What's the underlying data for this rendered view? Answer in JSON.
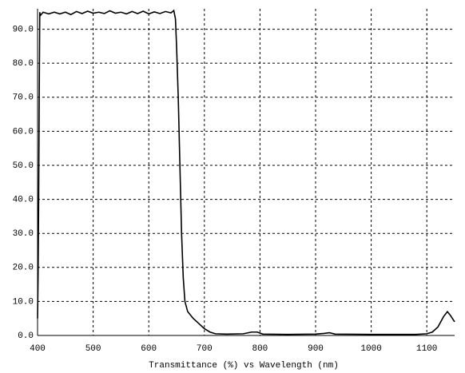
{
  "chart_data": {
    "type": "line",
    "x_label": "Transmittance (%)  vs  Wavelength (nm)",
    "x": [
      400,
      401,
      402,
      403,
      404,
      405,
      410,
      420,
      430,
      440,
      450,
      460,
      470,
      480,
      490,
      500,
      510,
      520,
      530,
      540,
      550,
      560,
      570,
      580,
      590,
      600,
      610,
      620,
      630,
      640,
      645,
      648,
      650,
      653,
      656,
      659,
      662,
      665,
      670,
      680,
      690,
      700,
      710,
      720,
      740,
      770,
      785,
      795,
      805,
      850,
      900,
      915,
      925,
      935,
      1000,
      1080,
      1100,
      1110,
      1120,
      1130,
      1137,
      1142,
      1150
    ],
    "values": [
      5,
      18,
      40,
      70,
      95,
      94,
      95,
      94.5,
      95,
      94.5,
      95,
      94.3,
      95.2,
      94.6,
      95.3,
      94.7,
      95,
      94.6,
      95.4,
      94.7,
      95,
      94.5,
      95.2,
      94.6,
      95.3,
      94.5,
      95.1,
      94.6,
      95.2,
      94.8,
      95.5,
      93,
      85,
      70,
      50,
      30,
      17,
      10,
      7,
      5,
      3.5,
      2,
      1,
      0.5,
      0.4,
      0.5,
      1,
      1,
      0.4,
      0.3,
      0.4,
      0.6,
      0.8,
      0.4,
      0.3,
      0.3,
      0.5,
      1,
      2.5,
      5.5,
      7,
      6,
      4
    ],
    "color": "#000000",
    "xlim": [
      400,
      1150
    ],
    "xticks": [
      400,
      500,
      600,
      700,
      800,
      900,
      1000,
      1100
    ],
    "ylim": [
      0,
      96
    ],
    "yticks": [
      {
        "value": 0,
        "label": "0.0"
      },
      {
        "value": 10,
        "label": "10.0"
      },
      {
        "value": 20,
        "label": "20.0"
      },
      {
        "value": 30,
        "label": "30.0"
      },
      {
        "value": 40,
        "label": "40.0"
      },
      {
        "value": 50,
        "label": "50.0"
      },
      {
        "value": 60,
        "label": "60.0"
      },
      {
        "value": 70,
        "label": "70.0"
      },
      {
        "value": 80,
        "label": "80.0"
      },
      {
        "value": 90,
        "label": "90.0"
      }
    ],
    "grid": true
  }
}
